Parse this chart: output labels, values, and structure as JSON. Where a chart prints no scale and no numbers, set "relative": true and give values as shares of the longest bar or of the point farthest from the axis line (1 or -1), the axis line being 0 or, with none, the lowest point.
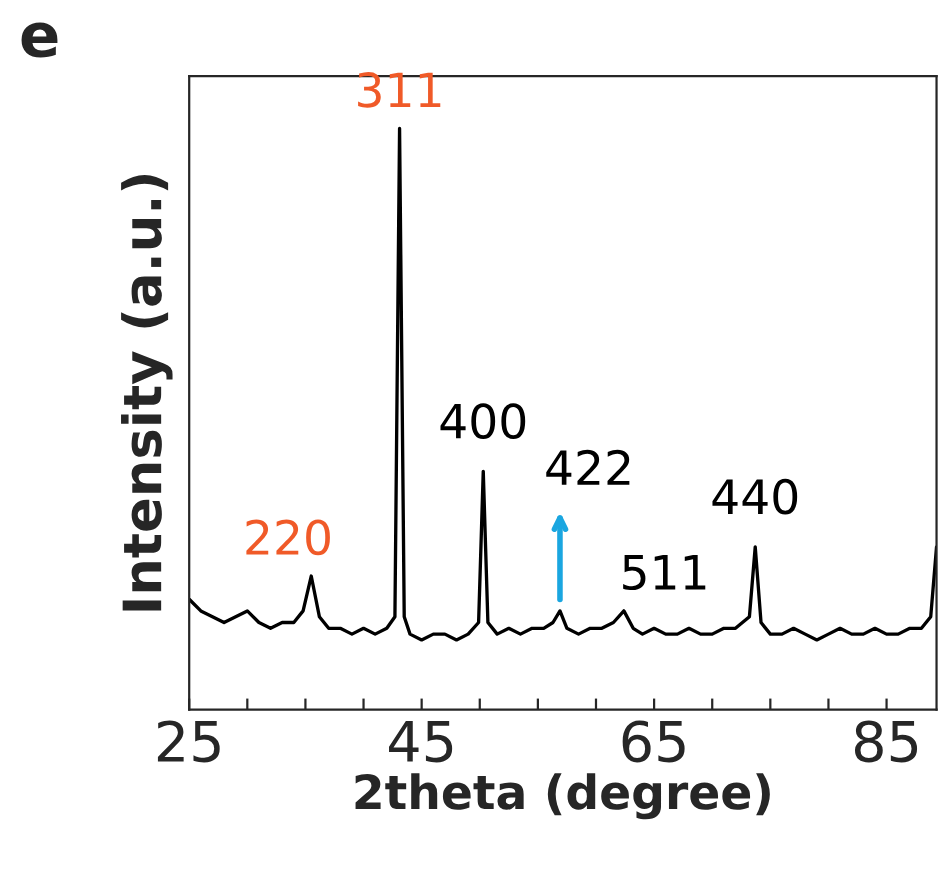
{
  "chart_data": {
    "type": "line",
    "title": "e",
    "xlabel": "2theta (degree)",
    "ylabel": "Intensity (a.u.)",
    "relative": true,
    "x": [
      25,
      26,
      27,
      28,
      29,
      30,
      31,
      32,
      33,
      34,
      34.8,
      35.5,
      36.2,
      37,
      38,
      39,
      40,
      41,
      42,
      42.7,
      43.1,
      43.5,
      44,
      45,
      46,
      47,
      48,
      49,
      49.9,
      50.3,
      50.7,
      51.5,
      52.5,
      53.5,
      54.5,
      55.5,
      56.3,
      56.9,
      57.5,
      58.5,
      59.5,
      60.5,
      61.5,
      62.4,
      63.2,
      64,
      65,
      66,
      67,
      68,
      69,
      70,
      71,
      72,
      73.2,
      73.7,
      74.2,
      75,
      76,
      77,
      78,
      79,
      80,
      81,
      82,
      83,
      84,
      85,
      86,
      87,
      88,
      88.8,
      89.3
    ],
    "series": [
      {
        "color": "#000000",
        "values": [
          0.19,
          0.17,
          0.16,
          0.15,
          0.16,
          0.17,
          0.15,
          0.14,
          0.15,
          0.15,
          0.17,
          0.23,
          0.16,
          0.14,
          0.14,
          0.13,
          0.14,
          0.13,
          0.14,
          0.16,
          1.0,
          0.16,
          0.13,
          0.12,
          0.13,
          0.13,
          0.12,
          0.13,
          0.15,
          0.41,
          0.15,
          0.13,
          0.14,
          0.13,
          0.14,
          0.14,
          0.15,
          0.17,
          0.14,
          0.13,
          0.14,
          0.14,
          0.15,
          0.17,
          0.14,
          0.13,
          0.14,
          0.13,
          0.13,
          0.14,
          0.13,
          0.13,
          0.14,
          0.14,
          0.16,
          0.28,
          0.15,
          0.13,
          0.13,
          0.14,
          0.13,
          0.12,
          0.13,
          0.14,
          0.13,
          0.13,
          0.14,
          0.13,
          0.13,
          0.14,
          0.14,
          0.16,
          0.28
        ]
      }
    ],
    "xlim": [
      25,
      89.3
    ],
    "xticks": [
      25,
      {
        "value": 30,
        "label": null
      },
      {
        "value": 35,
        "label": null
      },
      {
        "value": 40,
        "label": null
      },
      45,
      {
        "value": 50,
        "label": null
      },
      {
        "value": 55,
        "label": null
      },
      {
        "value": 60,
        "label": null
      },
      65,
      {
        "value": 70,
        "label": null
      },
      {
        "value": 75,
        "label": null
      },
      {
        "value": 80,
        "label": null
      },
      85
    ],
    "annotations": [
      {
        "text": "220",
        "x": 35.5,
        "y": 0.23
      },
      {
        "text": "311",
        "x": 43.1,
        "y": 1.0
      },
      {
        "text": "400",
        "x": 50.3,
        "y": 0.41
      },
      {
        "text": "422",
        "x": 56.9,
        "y": 0.17
      },
      {
        "text": "511",
        "x": 62.4,
        "y": 0.17
      },
      {
        "text": "440",
        "x": 73.7,
        "y": 0.28
      }
    ],
    "grid": false,
    "legend": false
  }
}
